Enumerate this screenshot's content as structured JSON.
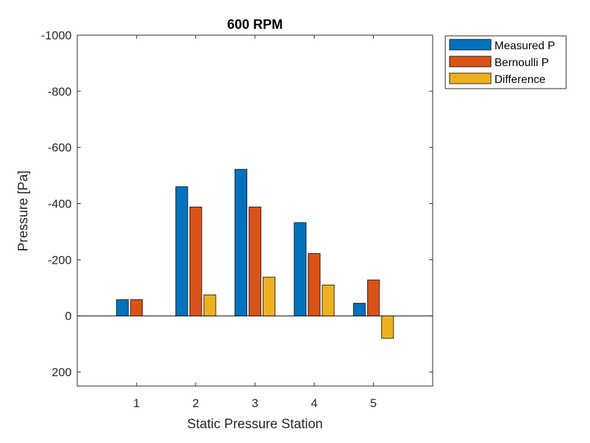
{
  "chart_data": {
    "type": "bar",
    "title": "600 RPM",
    "xlabel": "Static Pressure Station",
    "ylabel": "Pressure [Pa]",
    "categories": [
      "1",
      "2",
      "3",
      "4",
      "5"
    ],
    "ylim": [
      250,
      -1000
    ],
    "y_reversed": true,
    "yticks": [
      200,
      0,
      -200,
      -400,
      -600,
      -800,
      -1000
    ],
    "ytick_labels": [
      "200",
      "0",
      "-200",
      "-400",
      "-600",
      "-800",
      "-1000"
    ],
    "legend_position": "outside-top-right",
    "series": [
      {
        "name": "Measured P",
        "color": "#0072BD",
        "values": [
          -58,
          -460,
          -522,
          -332,
          -45
        ]
      },
      {
        "name": "Bernoulli P",
        "color": "#D95319",
        "values": [
          -58,
          -388,
          -388,
          -222,
          -128
        ]
      },
      {
        "name": "Difference",
        "color": "#EDB120",
        "values": [
          0,
          -75,
          -138,
          -110,
          80
        ]
      }
    ]
  }
}
